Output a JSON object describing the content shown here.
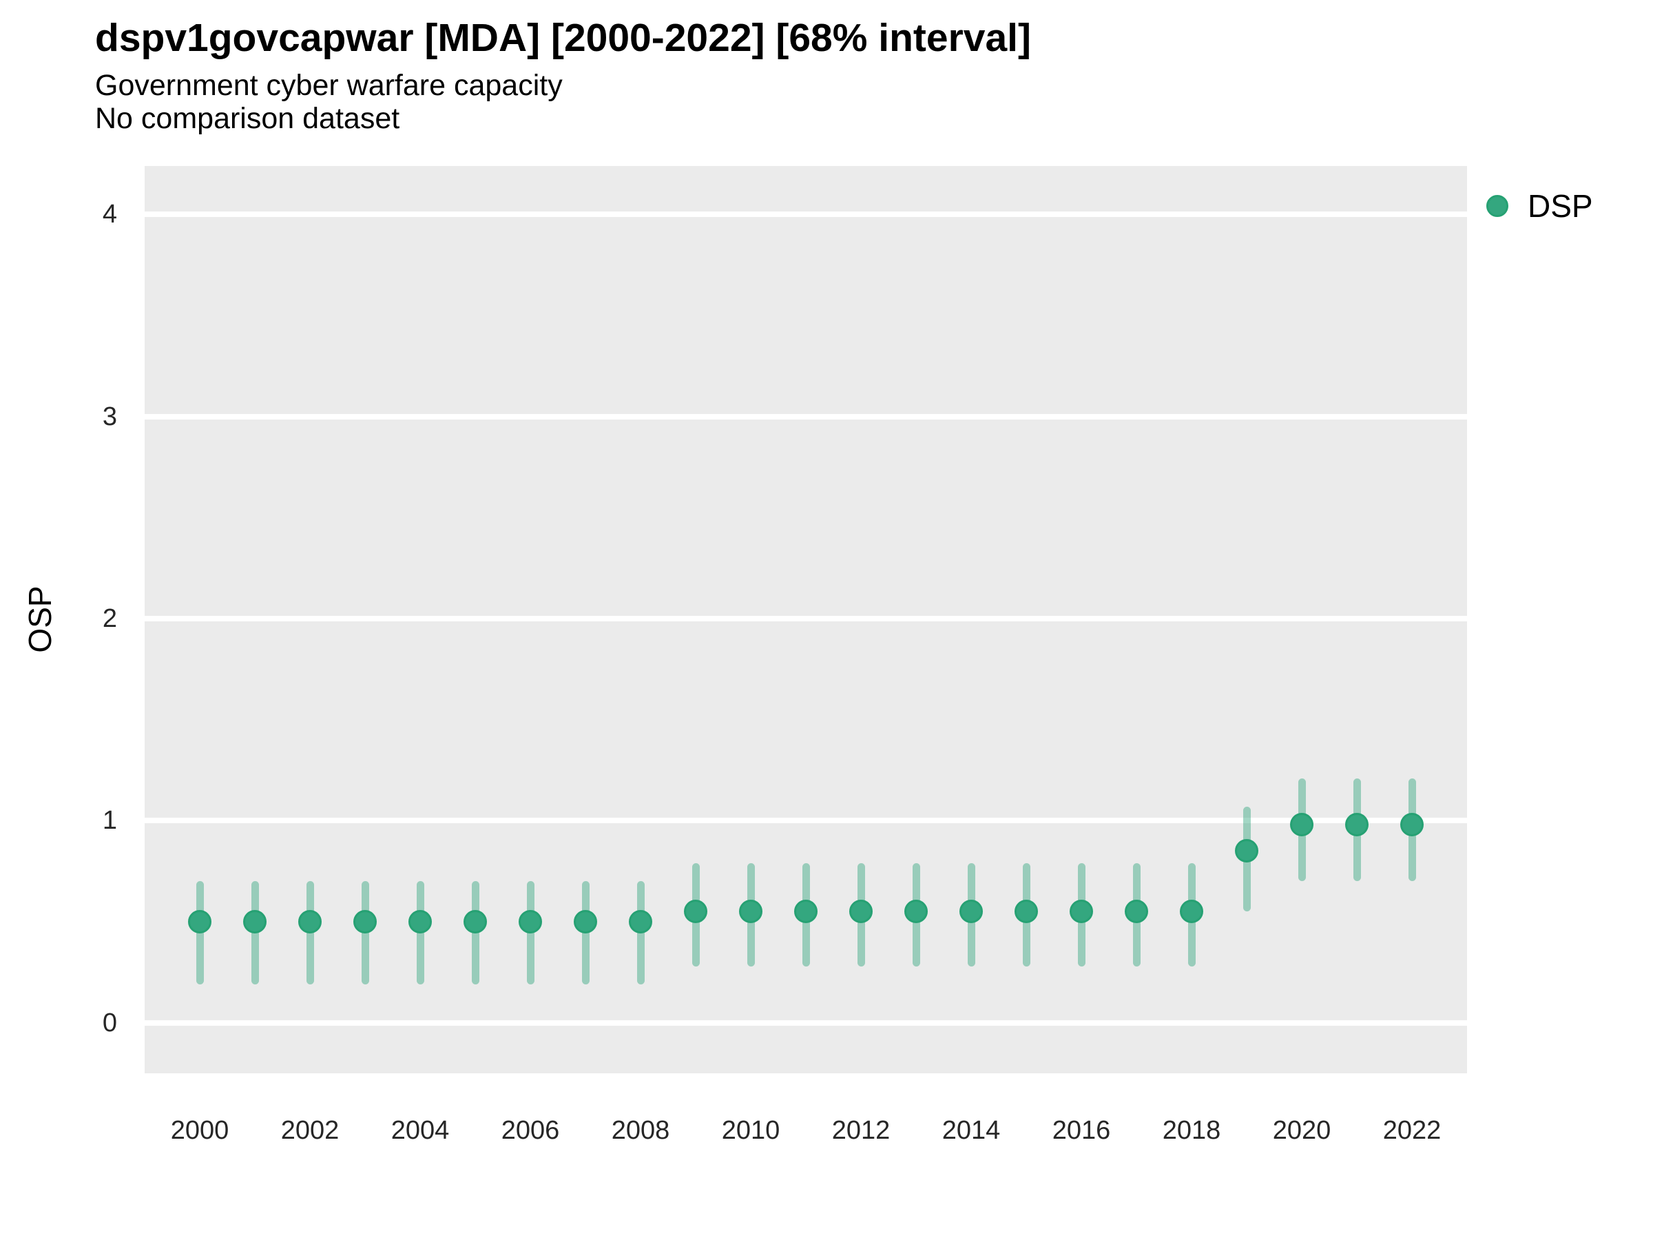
{
  "header": {
    "title": "dspv1govcapwar [MDA] [2000-2022] [68% interval]",
    "subtitle": "Government cyber warfare capacity",
    "comparison_note": "No comparison dataset"
  },
  "legend": {
    "position": "right",
    "items": [
      {
        "label": "DSP",
        "marker": "circle-icon"
      }
    ]
  },
  "axes": {
    "y_label": "OSP",
    "y_ticks": [
      0,
      1,
      2,
      3,
      4
    ],
    "x_ticks": [
      2000,
      2002,
      2004,
      2006,
      2008,
      2010,
      2012,
      2014,
      2016,
      2018,
      2020,
      2022
    ]
  },
  "colors": {
    "point_fill": "#34a77f",
    "point_stroke": "#26a173",
    "interval_bar": "rgba(52,167,127,0.45)",
    "panel_bg": "#ebebeb",
    "gridline": "#ffffff",
    "tick_text": "#262626",
    "title_text": "#000000"
  },
  "chart_data": {
    "type": "scatter",
    "title": "dspv1govcapwar [MDA] [2000-2022] [68% interval]",
    "subtitle": "Government cyber warfare capacity",
    "note": "No comparison dataset",
    "xlabel": "",
    "ylabel": "OSP",
    "interval": "68%",
    "legend_position": "right",
    "grid": "horizontal-major-only",
    "xlim": [
      1999,
      2023
    ],
    "ylim": [
      -0.25,
      4.24
    ],
    "x_ticks": [
      2000,
      2002,
      2004,
      2006,
      2008,
      2010,
      2012,
      2014,
      2016,
      2018,
      2020,
      2022
    ],
    "y_ticks": [
      0,
      1,
      2,
      3,
      4
    ],
    "series": [
      {
        "name": "DSP",
        "x": [
          2000,
          2001,
          2002,
          2003,
          2004,
          2005,
          2006,
          2007,
          2008,
          2009,
          2010,
          2011,
          2012,
          2013,
          2014,
          2015,
          2016,
          2017,
          2018,
          2019,
          2020,
          2021,
          2022
        ],
        "y": [
          0.5,
          0.5,
          0.5,
          0.5,
          0.5,
          0.5,
          0.5,
          0.5,
          0.5,
          0.55,
          0.55,
          0.55,
          0.55,
          0.55,
          0.55,
          0.55,
          0.55,
          0.55,
          0.55,
          0.85,
          0.98,
          0.98,
          0.98
        ],
        "y_lo": [
          0.19,
          0.19,
          0.19,
          0.19,
          0.19,
          0.19,
          0.19,
          0.19,
          0.19,
          0.28,
          0.28,
          0.28,
          0.28,
          0.28,
          0.28,
          0.28,
          0.28,
          0.28,
          0.28,
          0.55,
          0.7,
          0.7,
          0.7
        ],
        "y_hi": [
          0.7,
          0.7,
          0.7,
          0.7,
          0.7,
          0.7,
          0.7,
          0.7,
          0.7,
          0.79,
          0.79,
          0.79,
          0.79,
          0.79,
          0.79,
          0.79,
          0.79,
          0.79,
          0.79,
          1.07,
          1.21,
          1.21,
          1.21
        ]
      }
    ]
  }
}
